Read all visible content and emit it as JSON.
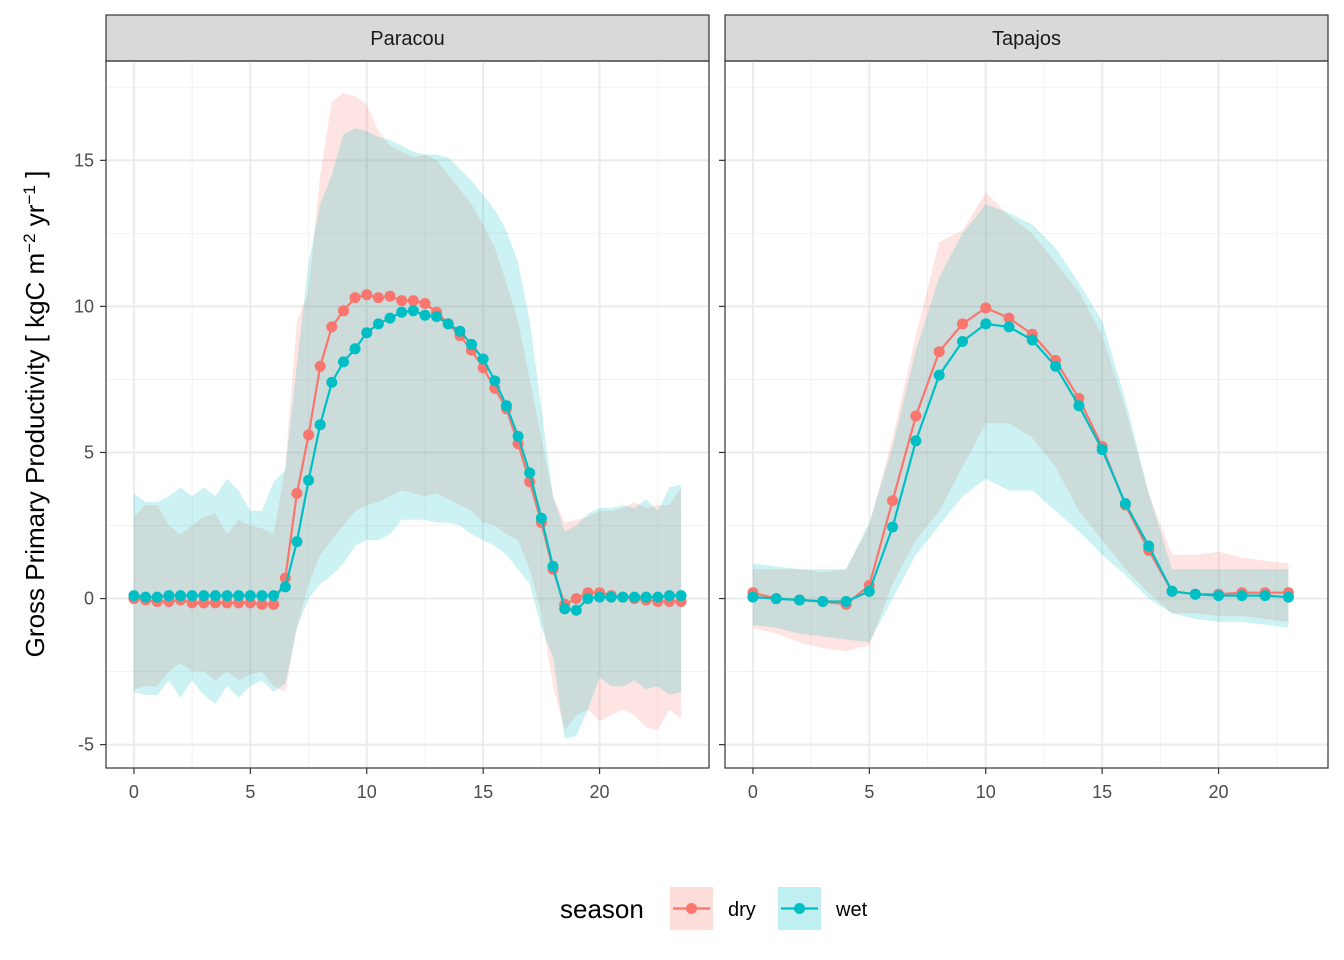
{
  "chart_data": {
    "type": "line",
    "ylabel": "Gross Primary Productivity [ kgC m^-2 yr^-1 ]",
    "ylabel_parts": {
      "main": "Gross Primary Productivity [ kgC m",
      "sup1": "−2",
      "mid": " yr",
      "sup2": "−1",
      "end": " ]"
    },
    "xlabel": "",
    "xlim": [
      -1.2,
      24.7
    ],
    "ylim": [
      -5.8,
      18.4
    ],
    "x_ticks": [
      0,
      5,
      10,
      15,
      20
    ],
    "y_ticks": [
      -5,
      0,
      5,
      10,
      15
    ],
    "y_tick_labels": [
      "-5",
      "0",
      "5",
      "10",
      "15"
    ],
    "grid": true,
    "legend": {
      "title": "season",
      "position": "bottom",
      "entries": [
        "dry",
        "wet"
      ]
    },
    "colors": {
      "dry": "#F8766D",
      "wet": "#00BFC4",
      "strip_bg": "#D9D9D9",
      "grid_major": "#EBEBEB"
    },
    "panels": [
      {
        "title": "Paracou",
        "series": [
          {
            "name": "dry",
            "x": [
              0,
              0.5,
              1,
              1.5,
              2,
              2.5,
              3,
              3.5,
              4,
              4.5,
              5,
              5.5,
              6,
              6.5,
              7,
              7.5,
              8,
              8.5,
              9,
              9.5,
              10,
              10.5,
              11,
              11.5,
              12,
              12.5,
              13,
              13.5,
              14,
              14.5,
              15,
              15.5,
              16,
              16.5,
              17,
              17.5,
              18,
              18.5,
              19,
              19.5,
              20,
              20.5,
              21,
              21.5,
              22,
              22.5,
              23,
              23.5
            ],
            "y": [
              0.0,
              -0.05,
              -0.1,
              -0.1,
              -0.05,
              -0.15,
              -0.15,
              -0.15,
              -0.15,
              -0.15,
              -0.15,
              -0.2,
              -0.2,
              0.7,
              3.6,
              5.6,
              7.95,
              9.3,
              9.85,
              10.3,
              10.4,
              10.3,
              10.35,
              10.2,
              10.2,
              10.1,
              9.8,
              9.4,
              9.0,
              8.5,
              7.9,
              7.2,
              6.5,
              5.3,
              4.0,
              2.6,
              1.0,
              -0.2,
              0.0,
              0.2,
              0.2,
              0.1,
              0.05,
              0.0,
              -0.05,
              -0.1,
              -0.1,
              -0.1
            ],
            "lower": [
              -3.1,
              -3.0,
              -3.0,
              -2.5,
              -2.2,
              -2.5,
              -2.5,
              -2.8,
              -2.5,
              -2.8,
              -2.6,
              -2.5,
              -3.0,
              -3.2,
              -1.0,
              0.5,
              1.5,
              2.0,
              2.5,
              3.0,
              3.2,
              3.3,
              3.5,
              3.7,
              3.6,
              3.5,
              3.6,
              3.4,
              3.2,
              3.0,
              2.6,
              2.5,
              2.2,
              2.0,
              1.0,
              -0.5,
              -3.0,
              -4.5,
              -4.0,
              -3.8,
              -4.2,
              -4.0,
              -3.8,
              -4.0,
              -4.4,
              -4.5,
              -3.8,
              -4.1
            ],
            "upper": [
              2.8,
              3.2,
              3.2,
              2.5,
              2.2,
              2.5,
              2.8,
              2.9,
              2.2,
              2.7,
              2.5,
              2.4,
              2.2,
              4.5,
              9.5,
              10.5,
              14.5,
              17.0,
              17.3,
              17.2,
              16.9,
              16.0,
              15.5,
              15.3,
              15.1,
              15.2,
              15.0,
              14.5,
              14.0,
              13.5,
              12.8,
              12.0,
              10.8,
              9.5,
              7.5,
              5.5,
              3.5,
              2.6,
              2.7,
              2.8,
              3.0,
              3.0,
              3.1,
              3.3,
              3.1,
              3.2,
              3.2,
              3.8
            ]
          },
          {
            "name": "wet",
            "x": [
              0,
              0.5,
              1,
              1.5,
              2,
              2.5,
              3,
              3.5,
              4,
              4.5,
              5,
              5.5,
              6,
              6.5,
              7,
              7.5,
              8,
              8.5,
              9,
              9.5,
              10,
              10.5,
              11,
              11.5,
              12,
              12.5,
              13,
              13.5,
              14,
              14.5,
              15,
              15.5,
              16,
              16.5,
              17,
              17.5,
              18,
              18.5,
              19,
              19.5,
              20,
              20.5,
              21,
              21.5,
              22,
              22.5,
              23,
              23.5
            ],
            "y": [
              0.1,
              0.05,
              0.05,
              0.1,
              0.1,
              0.1,
              0.1,
              0.1,
              0.1,
              0.1,
              0.1,
              0.1,
              0.1,
              0.4,
              1.95,
              4.05,
              5.95,
              7.4,
              8.1,
              8.55,
              9.1,
              9.4,
              9.6,
              9.8,
              9.85,
              9.7,
              9.65,
              9.4,
              9.15,
              8.7,
              8.2,
              7.45,
              6.6,
              5.55,
              4.3,
              2.75,
              1.1,
              -0.35,
              -0.4,
              0.0,
              0.05,
              0.05,
              0.05,
              0.05,
              0.05,
              0.05,
              0.1,
              0.1
            ],
            "lower": [
              -3.2,
              -3.3,
              -3.3,
              -2.8,
              -3.4,
              -2.8,
              -3.3,
              -3.6,
              -3.0,
              -3.4,
              -3.0,
              -2.8,
              -3.2,
              -2.9,
              -1.0,
              0.0,
              0.5,
              0.8,
              1.2,
              1.8,
              2.0,
              2.0,
              2.2,
              2.7,
              2.7,
              2.7,
              2.6,
              2.6,
              2.5,
              2.2,
              2.0,
              1.8,
              1.5,
              1.0,
              0.5,
              -1.0,
              -2.0,
              -4.8,
              -4.7,
              -3.8,
              -2.7,
              -3.0,
              -3.0,
              -2.8,
              -3.1,
              -3.0,
              -3.3,
              -3.2
            ],
            "upper": [
              3.6,
              3.3,
              3.3,
              3.5,
              3.8,
              3.5,
              3.8,
              3.5,
              4.1,
              3.7,
              3.0,
              3.0,
              4.0,
              4.4,
              8.0,
              11.5,
              13.5,
              14.5,
              15.9,
              16.1,
              16.0,
              15.8,
              15.7,
              15.5,
              15.3,
              15.2,
              15.2,
              15.1,
              14.7,
              14.3,
              13.8,
              13.3,
              12.6,
              11.5,
              9.5,
              6.5,
              3.5,
              2.3,
              2.5,
              2.9,
              3.1,
              3.1,
              3.2,
              3.1,
              3.4,
              3.0,
              3.8,
              3.9
            ]
          }
        ]
      },
      {
        "title": "Tapajos",
        "series": [
          {
            "name": "dry",
            "x": [
              0,
              1,
              2,
              3,
              4,
              5,
              6,
              7,
              8,
              9,
              10,
              11,
              12,
              13,
              14,
              15,
              16,
              17,
              18,
              19,
              20,
              21,
              22,
              23
            ],
            "y": [
              0.2,
              0.0,
              -0.05,
              -0.1,
              -0.2,
              0.45,
              3.35,
              6.25,
              8.45,
              9.4,
              9.95,
              9.6,
              9.05,
              8.15,
              6.85,
              5.2,
              3.2,
              1.65,
              0.25,
              0.15,
              0.15,
              0.2,
              0.2,
              0.2
            ],
            "lower": [
              -1.0,
              -1.2,
              -1.5,
              -1.7,
              -1.8,
              -1.6,
              0.5,
              2.0,
              3.0,
              4.5,
              6.0,
              6.0,
              5.5,
              4.5,
              3.0,
              2.0,
              1.0,
              0.2,
              -0.5,
              -0.5,
              -0.6,
              -0.6,
              -0.7,
              -0.8
            ],
            "upper": [
              1.0,
              1.0,
              1.0,
              0.9,
              1.0,
              2.5,
              5.5,
              9.0,
              12.2,
              12.6,
              13.9,
              13.1,
              12.5,
              11.5,
              10.5,
              9.0,
              6.5,
              3.6,
              1.5,
              1.5,
              1.6,
              1.4,
              1.3,
              1.2
            ]
          },
          {
            "name": "wet",
            "x": [
              0,
              1,
              2,
              3,
              4,
              5,
              6,
              7,
              8,
              9,
              10,
              11,
              12,
              13,
              14,
              15,
              16,
              17,
              18,
              19,
              20,
              21,
              22,
              23
            ],
            "y": [
              0.05,
              0.0,
              -0.05,
              -0.1,
              -0.1,
              0.25,
              2.45,
              5.4,
              7.65,
              8.8,
              9.4,
              9.3,
              8.85,
              7.95,
              6.6,
              5.1,
              3.25,
              1.8,
              0.25,
              0.15,
              0.1,
              0.1,
              0.1,
              0.05
            ],
            "lower": [
              -0.9,
              -1.0,
              -1.2,
              -1.3,
              -1.4,
              -1.5,
              0.0,
              1.5,
              2.5,
              3.5,
              4.1,
              3.7,
              3.7,
              3.0,
              2.3,
              1.5,
              0.8,
              0.0,
              -0.5,
              -0.7,
              -0.8,
              -0.8,
              -0.9,
              -1.0
            ],
            "upper": [
              1.2,
              1.1,
              1.0,
              1.0,
              1.0,
              2.6,
              5.2,
              8.5,
              11.0,
              12.5,
              13.5,
              13.2,
              12.8,
              12.0,
              10.8,
              9.5,
              6.8,
              3.6,
              1.0,
              1.0,
              1.0,
              1.0,
              1.0,
              1.0
            ]
          }
        ]
      }
    ]
  }
}
